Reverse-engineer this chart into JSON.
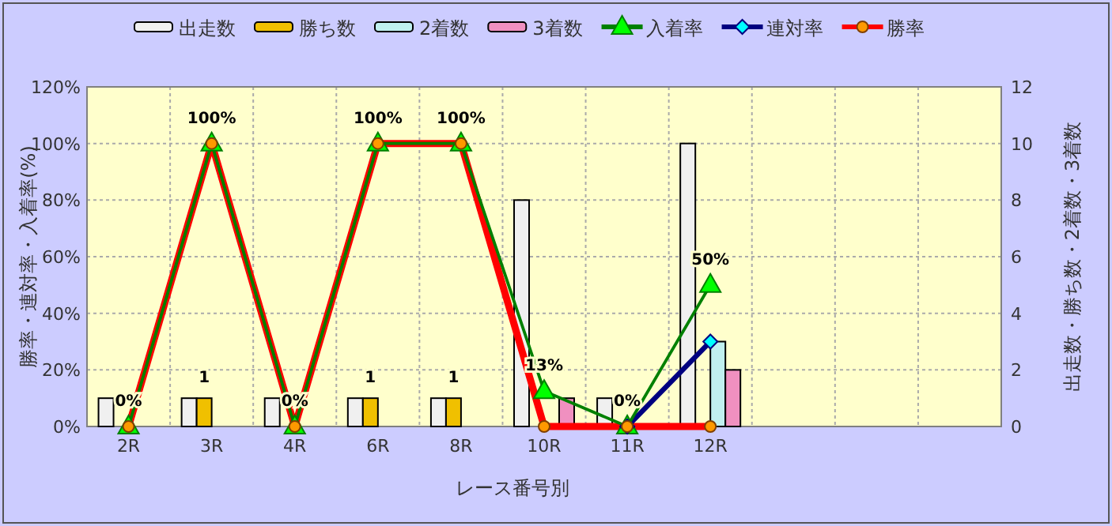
{
  "chart_data": {
    "type": "bar",
    "xlabel": "レース番号別",
    "ylabel": "勝率・連対率・入着率(%)",
    "y2label": "出走数・勝ち数・2着数・3着数",
    "categories": [
      "2R",
      "3R",
      "4R",
      "6R",
      "8R",
      "10R",
      "11R",
      "12R",
      null,
      null,
      null
    ],
    "ylim": [
      0,
      120
    ],
    "yticks": [
      {
        "value": 0,
        "label": "0%"
      },
      {
        "value": 20,
        "label": "20%"
      },
      {
        "value": 40,
        "label": "40%"
      },
      {
        "value": 60,
        "label": "60%"
      },
      {
        "value": 80,
        "label": "80%"
      },
      {
        "value": 100,
        "label": "100%"
      },
      {
        "value": 120,
        "label": "120%"
      }
    ],
    "y2lim": [
      0,
      12
    ],
    "y2ticks": [
      0,
      2,
      4,
      6,
      8,
      10,
      12
    ],
    "grid": true,
    "legend": "top",
    "series": [
      {
        "name": "出走数",
        "type": "bar",
        "axis": "y2",
        "color": "#f0f0f0",
        "values": [
          1,
          1,
          1,
          1,
          1,
          8,
          1,
          10,
          null,
          null,
          null
        ]
      },
      {
        "name": "勝ち数",
        "type": "bar",
        "axis": "y2",
        "color": "#f0c000",
        "values": [
          0,
          1,
          0,
          1,
          1,
          0,
          0,
          0,
          null,
          null,
          null
        ],
        "value_labels": [
          null,
          "1",
          null,
          "1",
          "1",
          null,
          null,
          null,
          null,
          null,
          null
        ]
      },
      {
        "name": "2着数",
        "type": "bar",
        "axis": "y2",
        "color": "#c0f0f0",
        "values": [
          0,
          0,
          0,
          0,
          0,
          0,
          0,
          3,
          null,
          null,
          null
        ]
      },
      {
        "name": "3着数",
        "type": "bar",
        "axis": "y2",
        "color": "#f090c0",
        "values": [
          0,
          0,
          0,
          0,
          0,
          1,
          0,
          2,
          null,
          null,
          null
        ]
      },
      {
        "name": "入着率",
        "type": "line",
        "color": "#008000",
        "marker": "triangle",
        "values": [
          0,
          100,
          0,
          100,
          100,
          12.5,
          0,
          50,
          null,
          null,
          null
        ],
        "value_labels": [
          "0%",
          "100%",
          "0%",
          "100%",
          "100%",
          "13%",
          "0%",
          "50%",
          null,
          null,
          null
        ]
      },
      {
        "name": "連対率",
        "type": "line",
        "color": "#000080",
        "marker": "diamond",
        "values": [
          null,
          null,
          null,
          null,
          null,
          null,
          0,
          30,
          null,
          null,
          null
        ]
      },
      {
        "name": "勝率",
        "type": "line",
        "color": "#ff0000",
        "marker": "circle",
        "values": [
          0,
          100,
          0,
          100,
          100,
          0,
          0,
          0,
          null,
          null,
          null
        ]
      }
    ]
  }
}
